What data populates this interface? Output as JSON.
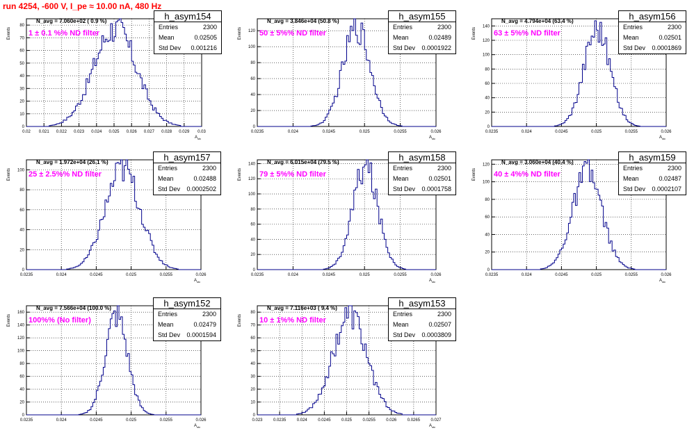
{
  "header": {
    "title": "run 4254,  -600 V, I_pe ≈ 10.00 nA, 480 Hz"
  },
  "colors": {
    "histogram_line": "#00008b",
    "title": "#ff0000",
    "annotation": "#ff00ff",
    "grid": "#000000"
  },
  "chart_data": [
    {
      "type": "histogram",
      "name": "h_asym154",
      "ylabel": "Events",
      "xlabel": "A_{stc}",
      "annotation": "N_avg = 7.060e+02 ( 0.9 %)",
      "filter_label": "1 ± 0.1 %% ND filter",
      "stats": {
        "entries": "2300",
        "mean": "0.02505",
        "std_dev": "0.001216"
      },
      "xlim": [
        0.02,
        0.03
      ],
      "ylim": [
        0,
        85
      ],
      "xticks": [
        "0.02",
        "0.021",
        "0.022",
        "0.023",
        "0.024",
        "0.025",
        "0.026",
        "0.027",
        "0.028",
        "0.029",
        "0.03"
      ],
      "xtick_values": [
        0.02,
        0.021,
        0.022,
        0.023,
        0.024,
        0.025,
        0.026,
        0.027,
        0.028,
        0.029,
        0.03
      ],
      "yticks": [
        0,
        10,
        20,
        30,
        40,
        50,
        60,
        70,
        80
      ],
      "mean_value": 0.02505,
      "std_value": 0.001216,
      "peak": 80
    },
    {
      "type": "histogram",
      "name": "h_asym155",
      "ylabel": "Events",
      "xlabel": "A_{stc}",
      "annotation": "N_avg = 3.846e+04 (50.8 %)",
      "filter_label": "50 ± 5%% ND filter",
      "stats": {
        "entries": "2300",
        "mean": "0.02489",
        "std_dev": "0.0001922"
      },
      "xlim": [
        0.0235,
        0.026
      ],
      "ylim": [
        0,
        135
      ],
      "xticks": [
        "0.0235",
        "0.024",
        "0.0245",
        "0.025",
        "0.0255",
        "0.026"
      ],
      "xtick_values": [
        0.0235,
        0.024,
        0.0245,
        0.025,
        0.0255,
        0.026
      ],
      "yticks": [
        0,
        20,
        40,
        60,
        80,
        100,
        120
      ],
      "mean_value": 0.02489,
      "std_value": 0.0001922,
      "peak": 128
    },
    {
      "type": "histogram",
      "name": "h_asym156",
      "ylabel": "Events",
      "xlabel": "A_{stc}",
      "annotation": "N_avg = 4.794e+04 (63.4 %)",
      "filter_label": "63 ± 5%% ND filter",
      "stats": {
        "entries": "2300",
        "mean": "0.02501",
        "std_dev": "0.0001869"
      },
      "xlim": [
        0.0235,
        0.026
      ],
      "ylim": [
        0,
        150
      ],
      "xticks": [
        "0.0235",
        "0.024",
        "0.0245",
        "0.025",
        "0.0255",
        "0.026"
      ],
      "xtick_values": [
        0.0235,
        0.024,
        0.0245,
        0.025,
        0.0255,
        0.026
      ],
      "yticks": [
        0,
        20,
        40,
        60,
        80,
        100,
        120,
        140
      ],
      "mean_value": 0.02501,
      "std_value": 0.0001869,
      "peak": 142
    },
    {
      "type": "histogram",
      "name": "h_asym157",
      "ylabel": "Events",
      "xlabel": "A_{stc}",
      "annotation": "N_avg = 1.972e+04 (26.1 %)",
      "filter_label": "25 ± 2.5%% ND filter",
      "stats": {
        "entries": "2300",
        "mean": "0.02488",
        "std_dev": "0.0002502"
      },
      "xlim": [
        0.0235,
        0.026
      ],
      "ylim": [
        0,
        110
      ],
      "xticks": [
        "0.0235",
        "0.024",
        "0.0245",
        "0.025",
        "0.0255",
        "0.026"
      ],
      "xtick_values": [
        0.0235,
        0.024,
        0.0245,
        0.025,
        0.0255,
        0.026
      ],
      "yticks": [
        0,
        20,
        40,
        60,
        80,
        100
      ],
      "mean_value": 0.02488,
      "std_value": 0.0002502,
      "peak": 104
    },
    {
      "type": "histogram",
      "name": "h_asym158",
      "ylabel": "Events",
      "xlabel": "A_{stc}",
      "annotation": "N_avg = 6.015e+04 (79.5 %)",
      "filter_label": "79 ± 5%% ND filter",
      "stats": {
        "entries": "2300",
        "mean": "0.02501",
        "std_dev": "0.0001758"
      },
      "xlim": [
        0.0235,
        0.026
      ],
      "ylim": [
        0,
        145
      ],
      "xticks": [
        "0.0235",
        "0.024",
        "0.0245",
        "0.025",
        "0.0255",
        "0.026"
      ],
      "xtick_values": [
        0.0235,
        0.024,
        0.0245,
        0.025,
        0.0255,
        0.026
      ],
      "yticks": [
        0,
        20,
        40,
        60,
        80,
        100,
        120,
        140
      ],
      "mean_value": 0.02501,
      "std_value": 0.0001758,
      "peak": 140
    },
    {
      "type": "histogram",
      "name": "h_asym159",
      "ylabel": "Events",
      "xlabel": "A_{stc}",
      "annotation": "N_avg = 3.060e+04 (40.4 %)",
      "filter_label": "40 ± 4%% ND filter",
      "stats": {
        "entries": "2300",
        "mean": "0.02487",
        "std_dev": "0.0002107"
      },
      "xlim": [
        0.0235,
        0.026
      ],
      "ylim": [
        0,
        125
      ],
      "xticks": [
        "0.0235",
        "0.024",
        "0.0245",
        "0.025",
        "0.0255",
        "0.026"
      ],
      "xtick_values": [
        0.0235,
        0.024,
        0.0245,
        0.025,
        0.0255,
        0.026
      ],
      "yticks": [
        0,
        20,
        40,
        60,
        80,
        100,
        120
      ],
      "mean_value": 0.02487,
      "std_value": 0.0002107,
      "peak": 114
    },
    {
      "type": "histogram",
      "name": "h_asym152",
      "ylabel": "Events",
      "xlabel": "A_{stc}",
      "annotation": "N_avg = 7.566e+04 (100.0 %)",
      "filter_label": "100%% (No filter)",
      "stats": {
        "entries": "2300",
        "mean": "0.02479",
        "std_dev": "0.0001594"
      },
      "xlim": [
        0.0235,
        0.026
      ],
      "ylim": [
        0,
        170
      ],
      "xticks": [
        "0.0235",
        "0.024",
        "0.0245",
        "0.025",
        "0.0255",
        "0.026"
      ],
      "xtick_values": [
        0.0235,
        0.024,
        0.0245,
        0.025,
        0.0255,
        0.026
      ],
      "yticks": [
        0,
        20,
        40,
        60,
        80,
        100,
        120,
        140,
        160
      ],
      "mean_value": 0.02479,
      "std_value": 0.0001594,
      "peak": 160
    },
    {
      "type": "histogram",
      "name": "h_asym153",
      "ylabel": "Events",
      "xlabel": "A_{stc}",
      "annotation": "N_avg = 7.116e+03 ( 9.4 %)",
      "filter_label": "10 ± 1%% ND filter",
      "stats": {
        "entries": "2300",
        "mean": "0.02507",
        "std_dev": "0.0003809"
      },
      "xlim": [
        0.023,
        0.027
      ],
      "ylim": [
        0,
        85
      ],
      "xticks": [
        "0.023",
        "0.0235",
        "0.024",
        "0.0245",
        "0.025",
        "0.0255",
        "0.026",
        "0.0265",
        "0.027"
      ],
      "xtick_values": [
        0.023,
        0.0235,
        0.024,
        0.0245,
        0.025,
        0.0255,
        0.026,
        0.0265,
        0.027
      ],
      "yticks": [
        0,
        10,
        20,
        30,
        40,
        50,
        60,
        70,
        80
      ],
      "mean_value": 0.02507,
      "std_value": 0.0003809,
      "peak": 80
    }
  ]
}
